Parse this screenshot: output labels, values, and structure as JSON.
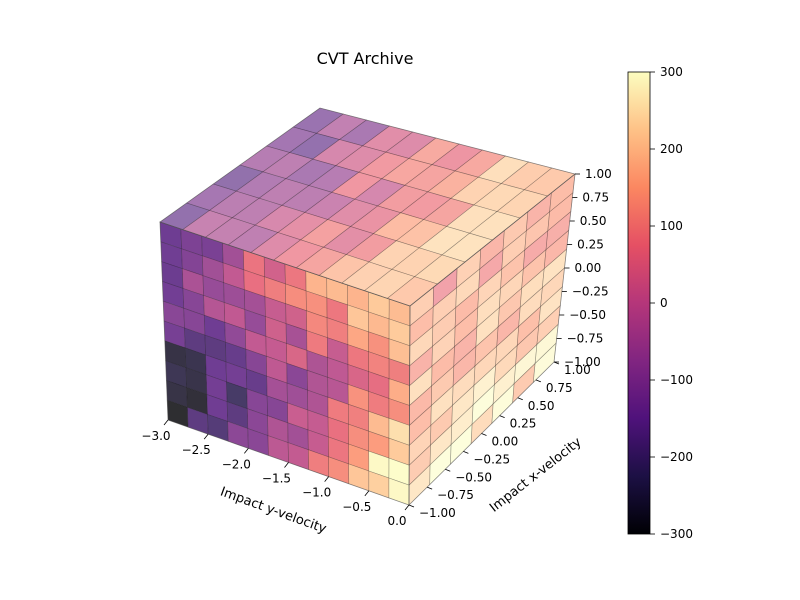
{
  "chart_data": {
    "type": "scatter",
    "title": "CVT Archive",
    "xlabel": "Impact y-velocity",
    "ylabel": "Impact x-velocity",
    "xlim": [
      -3.0,
      0.0
    ],
    "ylim": [
      -1.0,
      1.0
    ],
    "zlim": [
      -1.0,
      1.0
    ],
    "x_ticks": [
      "−3.0",
      "−2.5",
      "−2.0",
      "−1.5",
      "−1.0",
      "−0.5",
      "0.0"
    ],
    "y_ticks": [
      "−1.00",
      "−0.75",
      "−0.50",
      "−0.25",
      "0.00",
      "0.25",
      "0.50",
      "0.75",
      "1.00"
    ],
    "z_ticks": [
      "−1.00",
      "−0.75",
      "−0.50",
      "−0.25",
      "0.00",
      "0.25",
      "0.50",
      "0.75",
      "1.00"
    ],
    "colorbar": {
      "colormap": "magma",
      "range": [
        -300,
        300
      ],
      "ticks": [
        "300",
        "200",
        "100",
        "0",
        "−100",
        "−200",
        "−300"
      ]
    },
    "grid": false
  }
}
